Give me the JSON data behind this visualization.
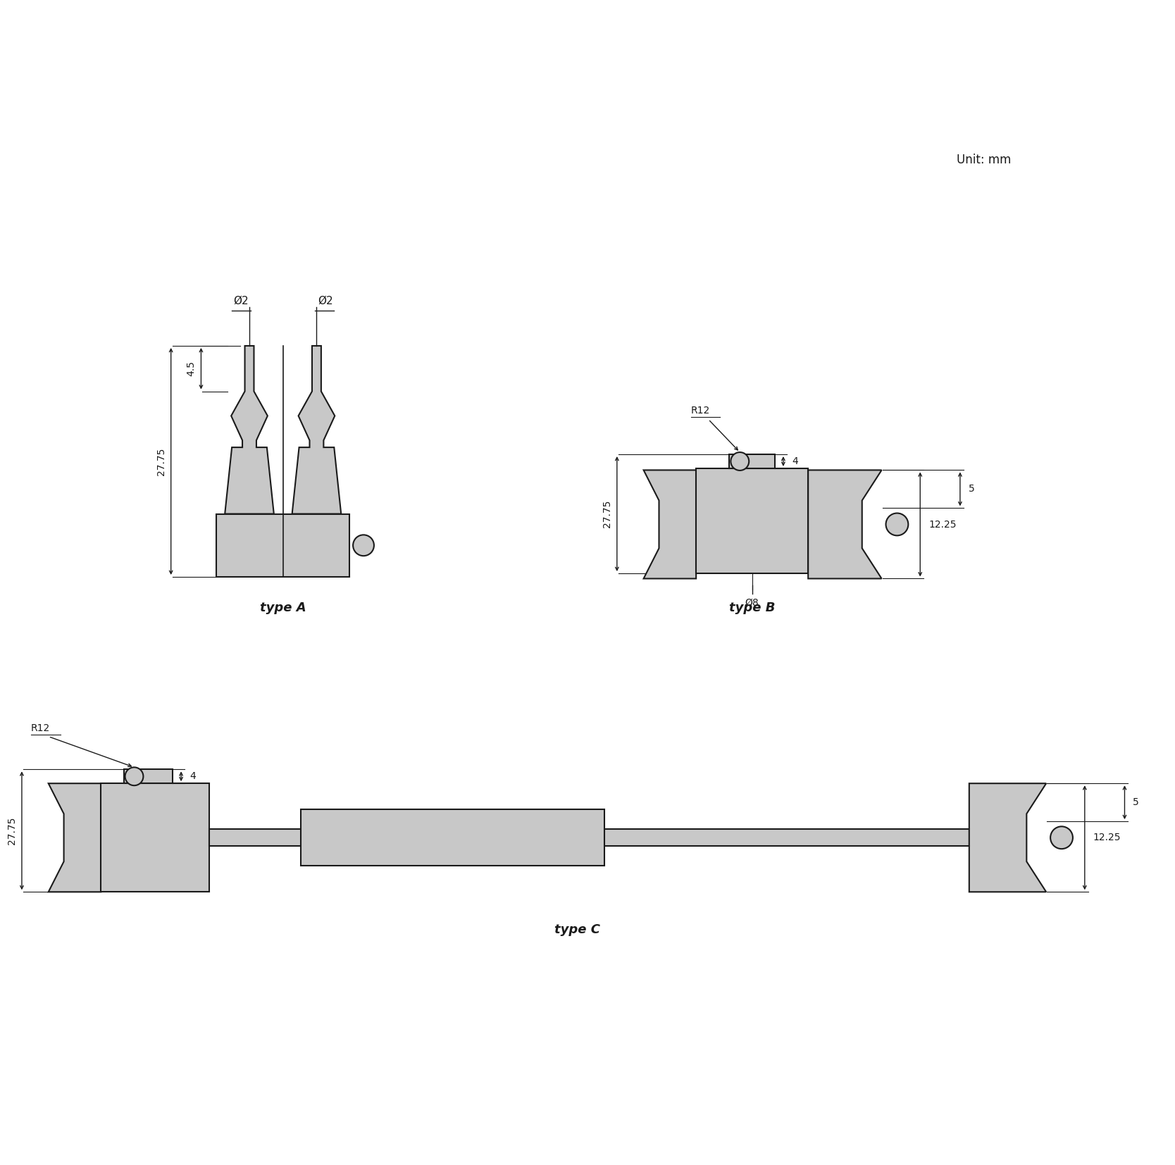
{
  "bg_color": "#ffffff",
  "line_color": "#1a1a1a",
  "fill_color": "#c8c8c8",
  "unit_text": "Unit: mm",
  "typeA_label": "type A",
  "typeB_label": "type B",
  "typeC_label": "type C",
  "dims": {
    "phi2_left": "Ø2",
    "phi2_right": "Ø2",
    "dim_4_5": "4.5",
    "dim_27_75_A": "27.75",
    "dim_R12_B": "R12",
    "dim_4_B": "4",
    "dim_27_75_B": "27.75",
    "dim_12_25_B": "12.25",
    "dim_5_B": "5",
    "dim_phi8": "Ø8",
    "dim_27_75_C": "27.75",
    "dim_R12_C": "R12",
    "dim_4_C": "4",
    "dim_12_25_C": "12.25",
    "dim_5_C": "5"
  }
}
